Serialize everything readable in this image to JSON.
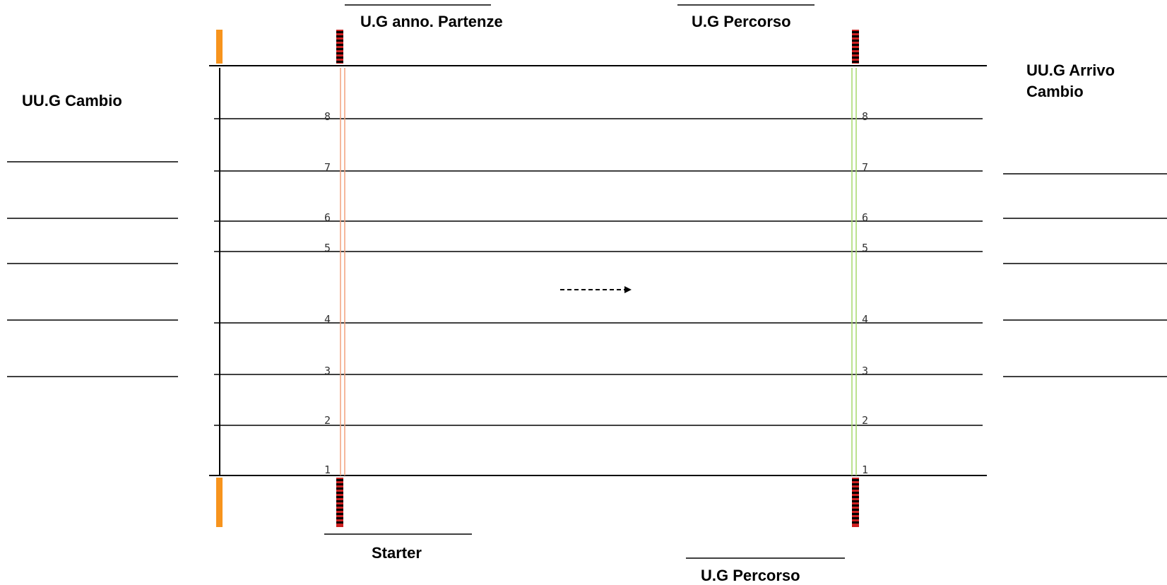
{
  "labels": {
    "announcer": "U.G anno. Partenze",
    "course_top": "U.G Percorso",
    "exchange_left": "UU.G Cambio",
    "arrival_line1": "UU.G Arrivo",
    "arrival_line2": "Cambio",
    "starter": "Starter",
    "course_bottom": "U.G Percorso"
  },
  "lanes": [
    "8",
    "7",
    "6",
    "5",
    "4",
    "3",
    "2",
    "1"
  ],
  "colors": {
    "line": "#000000",
    "start_line": "#f2a07b",
    "finish_line": "#a6d96a",
    "post": "#f7941d",
    "flag_red": "#cc1f1f",
    "flag_black": "#000000"
  },
  "icons": {
    "direction": "dashed-arrow-right",
    "post": "orange-post",
    "flag": "red-black-striped-flag"
  }
}
